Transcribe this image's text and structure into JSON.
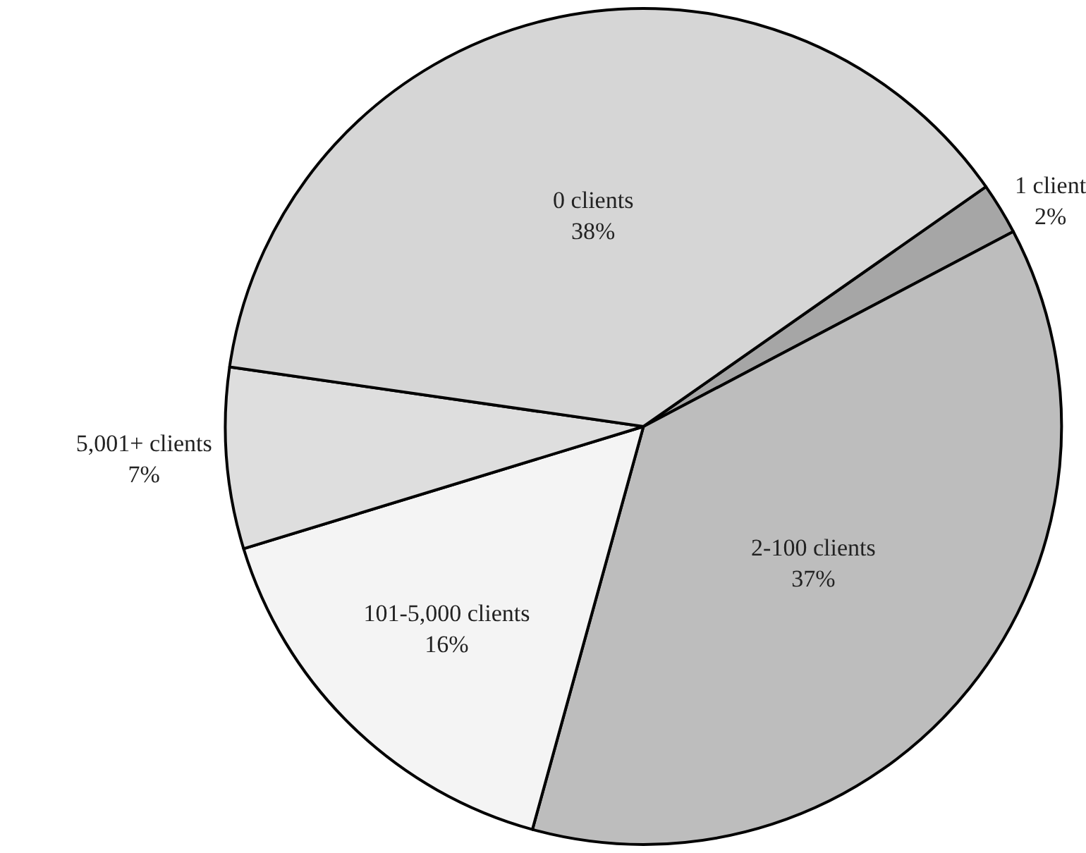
{
  "chart_data": {
    "type": "pie",
    "categories": [
      "1 client",
      "2-100 clients",
      "101-5,000 clients",
      "5,001+ clients",
      "0 clients"
    ],
    "values": [
      2,
      37,
      16,
      7,
      38
    ],
    "value_labels": [
      "2%",
      "37%",
      "16%",
      "7%",
      "38%"
    ],
    "colors": [
      "#a6a6a6",
      "#bdbdbd",
      "#f4f4f4",
      "#dedede",
      "#d6d6d6"
    ],
    "legend": false
  }
}
